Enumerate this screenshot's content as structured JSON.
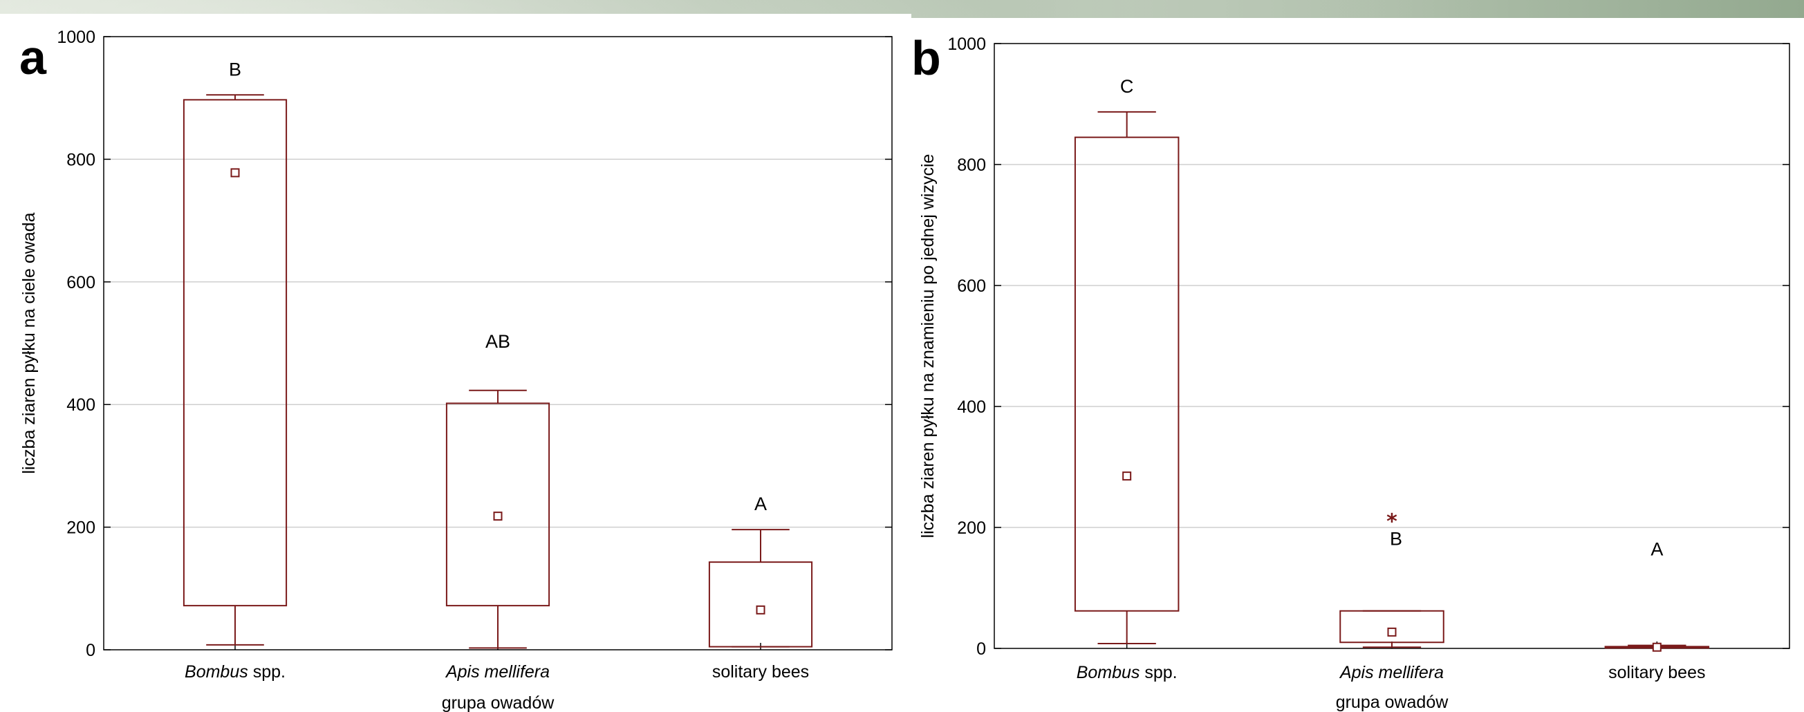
{
  "chart_data": [
    {
      "type": "box",
      "panel_label": "a",
      "ylabel": "liczba ziaren pyłku na ciele owada",
      "xlabel": "grupa owadów",
      "ylim": [
        0,
        1000
      ],
      "yticks": [
        "0",
        "200",
        "400",
        "600",
        "800",
        "1000"
      ],
      "grid": true,
      "categories": [
        {
          "italic": "Bombus",
          "rest": " spp."
        },
        {
          "italic": "Apis mellifera",
          "rest": ""
        },
        {
          "italic": "",
          "rest": "solitary bees"
        }
      ],
      "boxes": [
        {
          "whisker_low": 8,
          "q1": 72,
          "mean": 778,
          "q3": 897,
          "whisker_high": 905,
          "letter": "B"
        },
        {
          "whisker_low": 3,
          "q1": 72,
          "mean": 218,
          "q3": 402,
          "whisker_high": 423,
          "letter": "AB"
        },
        {
          "whisker_low": 5,
          "q1": 5,
          "mean": 65,
          "q3": 143,
          "whisker_high": 196,
          "letter": "A"
        }
      ]
    },
    {
      "type": "box",
      "panel_label": "b",
      "ylabel": "liczba ziaren pyłku na znamieniu po jednej wizycie",
      "xlabel": "grupa owadów",
      "ylim": [
        0,
        1000
      ],
      "yticks": [
        "0",
        "200",
        "400",
        "600",
        "800",
        "1000"
      ],
      "grid": true,
      "categories": [
        {
          "italic": "Bombus",
          "rest": " spp."
        },
        {
          "italic": "Apis mellifera",
          "rest": ""
        },
        {
          "italic": "",
          "rest": "solitary bees"
        }
      ],
      "boxes": [
        {
          "whisker_low": 8,
          "q1": 62,
          "mean": 285,
          "q3": 845,
          "whisker_high": 887,
          "letter": "C"
        },
        {
          "whisker_low": 2,
          "q1": 10,
          "mean": 27,
          "q3": 62,
          "whisker_high": 62,
          "letter": "B",
          "outlier": 212
        },
        {
          "whisker_low": 1,
          "q1": 1,
          "mean": 2,
          "q3": 3,
          "whisker_high": 5,
          "letter": "A"
        }
      ]
    }
  ]
}
